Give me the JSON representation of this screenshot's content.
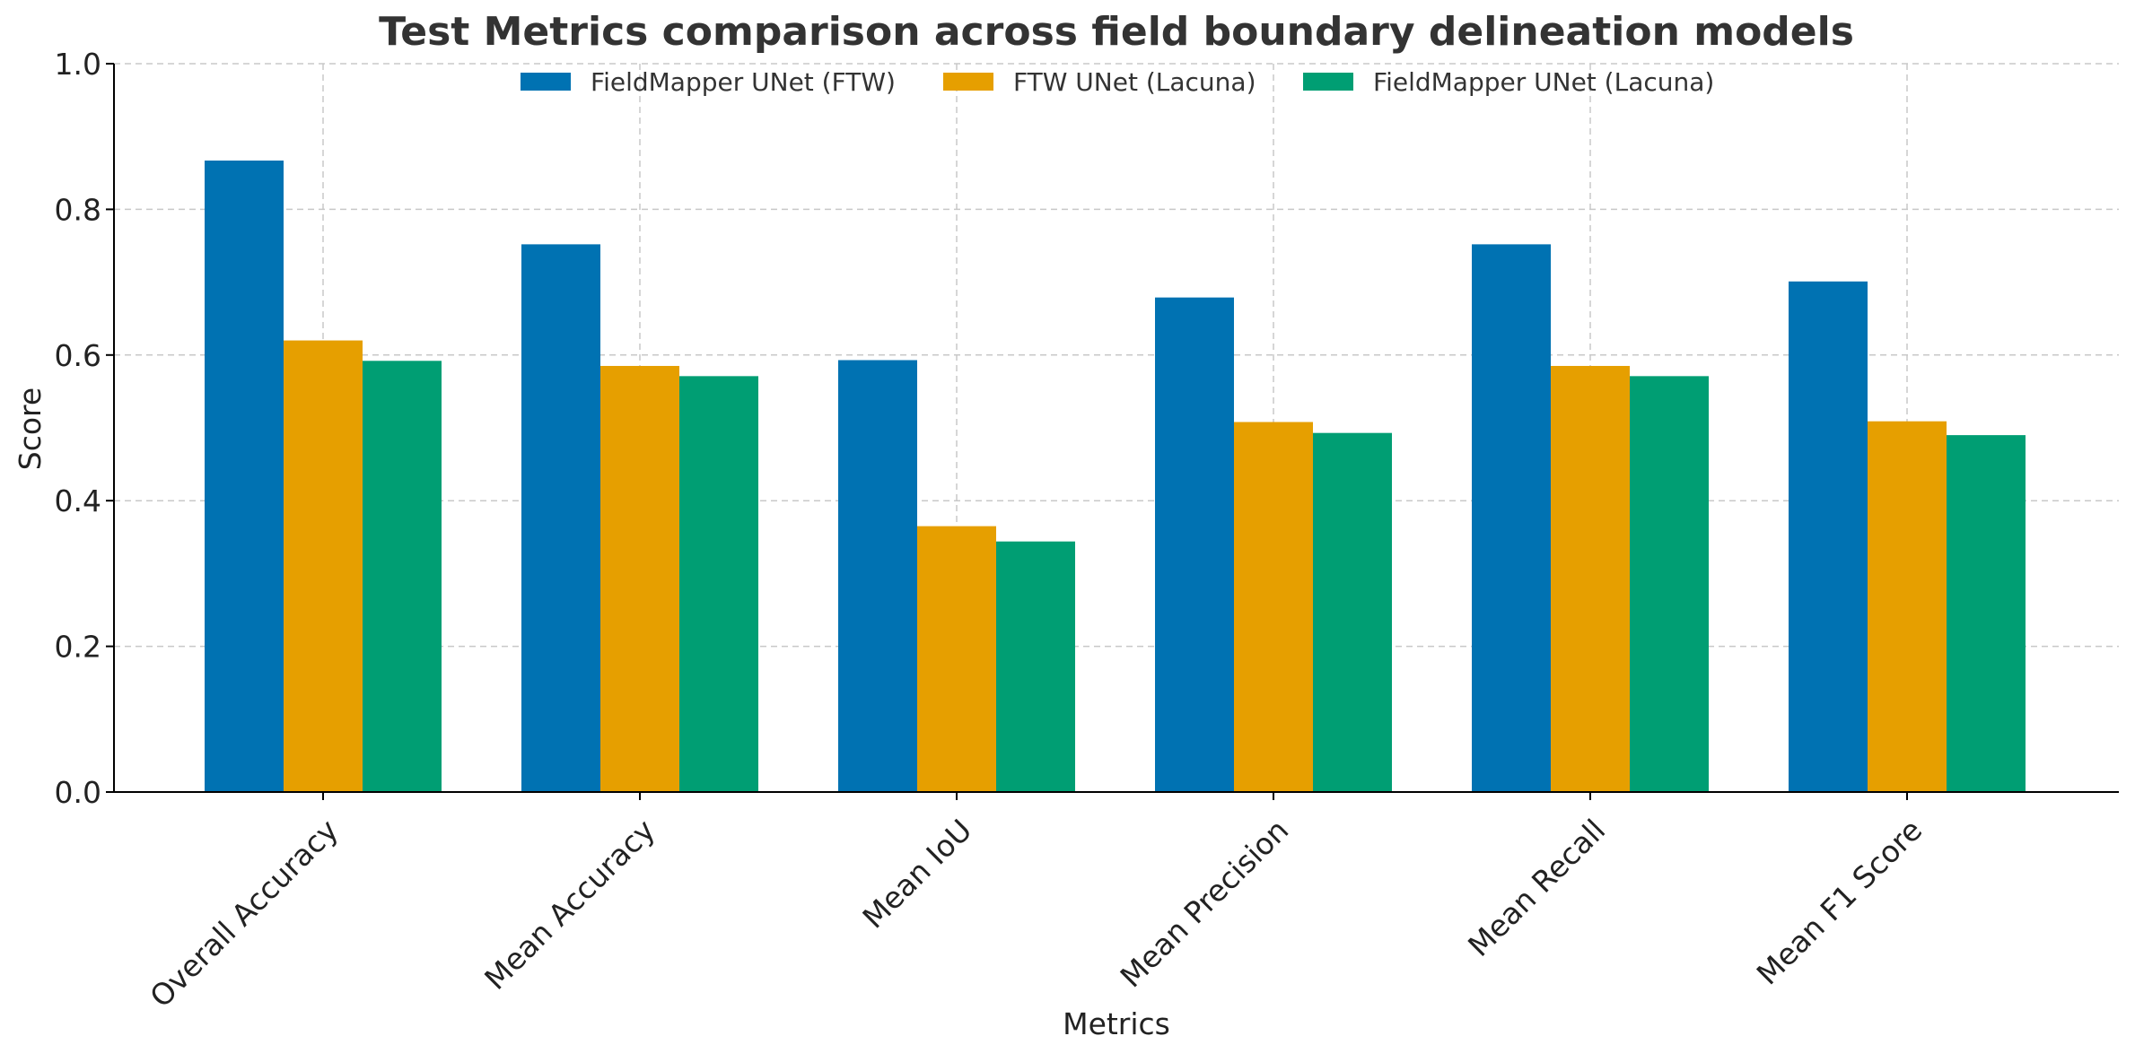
{
  "chart_data": {
    "type": "bar",
    "title": "Test Metrics comparison across field boundary delineation models",
    "xlabel": "Metrics",
    "ylabel": "Score",
    "ylim": [
      0,
      1.0
    ],
    "yticks": [
      "0.0",
      "0.2",
      "0.4",
      "0.6",
      "0.8",
      "1.0"
    ],
    "grid": true,
    "legend_position": "top-center",
    "categories": [
      "Overall Accuracy",
      "Mean Accuracy",
      "Mean IoU",
      "Mean Precision",
      "Mean Recall",
      "Mean F1 Score"
    ],
    "series": [
      {
        "name": "FieldMapper UNet (FTW)",
        "color": "#0072b2",
        "values": [
          0.867,
          0.752,
          0.593,
          0.679,
          0.752,
          0.701
        ]
      },
      {
        "name": "FTW UNet (Lacuna)",
        "color": "#e69f00",
        "values": [
          0.62,
          0.585,
          0.365,
          0.508,
          0.585,
          0.509
        ]
      },
      {
        "name": "FieldMapper UNet (Lacuna)",
        "color": "#009e73",
        "values": [
          0.592,
          0.571,
          0.344,
          0.493,
          0.571,
          0.49
        ]
      }
    ]
  }
}
